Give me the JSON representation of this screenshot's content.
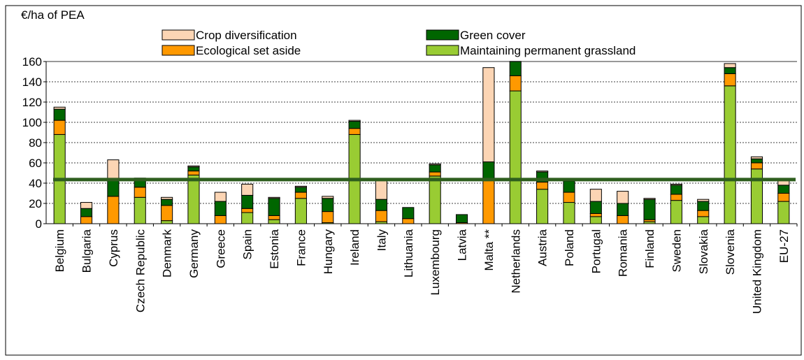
{
  "chart_data": {
    "type": "stacked_bar",
    "y_label": "€/ha of PEA",
    "categories": [
      "Belgium",
      "Bulgaria",
      "Cyprus",
      "Czech Republic",
      "Denmark",
      "Germany",
      "Greece",
      "Spain",
      "Estonia",
      "France",
      "Hungary",
      "Ireland",
      "Italy",
      "Lithuania",
      "Luxembourg",
      "Latvia",
      "Malta **",
      "Netherlands",
      "Austria",
      "Poland",
      "Portugal",
      "Romania",
      "Finland",
      "Sweden",
      "Slovakia",
      "Slovenia",
      "United Kingdom",
      "EU-27"
    ],
    "series": [
      {
        "name": "Maintaining permanent grassland",
        "color": "#99cc33",
        "values": [
          88,
          0,
          0,
          26,
          3,
          48,
          0,
          11,
          4,
          25,
          1,
          88,
          2,
          0,
          47,
          0,
          0,
          131,
          34,
          21,
          7,
          0,
          2,
          23,
          7,
          136,
          54,
          22
        ]
      },
      {
        "name": "Ecological set aside",
        "color": "#ff9900",
        "values": [
          14,
          7,
          27,
          10,
          15,
          4,
          8,
          4,
          4,
          6,
          11,
          6,
          11,
          5,
          4,
          1,
          43,
          15,
          7,
          10,
          3,
          8,
          2,
          6,
          6,
          12,
          6,
          8
        ]
      },
      {
        "name": "Green cover",
        "color": "#006600",
        "values": [
          11,
          8,
          17,
          9,
          6,
          4,
          14,
          13,
          17,
          5,
          13,
          7,
          11,
          11,
          7,
          8,
          18,
          14,
          10,
          11,
          12,
          12,
          20,
          9,
          9,
          6,
          4,
          8
        ]
      },
      {
        "name": "Crop diversification",
        "color": "#fcd5b4",
        "values": [
          2,
          6,
          19,
          0,
          2,
          1,
          9,
          11,
          1,
          1,
          2,
          1,
          19,
          0,
          1,
          0,
          93,
          0,
          1,
          0,
          12,
          12,
          1,
          1,
          2,
          4,
          2,
          5
        ]
      }
    ],
    "reference_line": 43.5,
    "reference_color": "#2e5e1e",
    "ylim": [
      0,
      160
    ],
    "yticks": [
      0,
      20,
      40,
      60,
      80,
      100,
      120,
      140,
      160
    ],
    "grid": true
  }
}
